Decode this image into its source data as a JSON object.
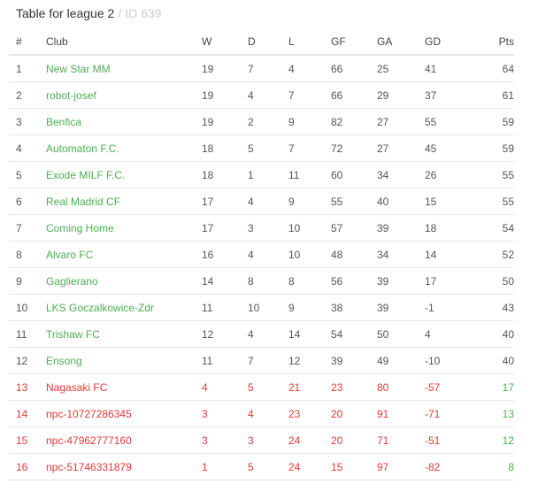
{
  "header": {
    "title": "Table for league 2",
    "separator": "/",
    "id_text": "ID 639"
  },
  "columns": {
    "pos": "#",
    "club": "Club",
    "w": "W",
    "d": "D",
    "l": "L",
    "gf": "GF",
    "ga": "GA",
    "gd": "GD",
    "pts": "Pts"
  },
  "colors": {
    "promotion": "#4caf50",
    "relegation": "#e53935",
    "points": "#4caf50"
  },
  "rows": [
    {
      "pos": "1",
      "club": "New Star MM",
      "w": "19",
      "d": "7",
      "l": "4",
      "gf": "66",
      "ga": "25",
      "gd": "41",
      "pts": "64"
    },
    {
      "pos": "2",
      "club": "robot-josef",
      "w": "19",
      "d": "4",
      "l": "7",
      "gf": "66",
      "ga": "29",
      "gd": "37",
      "pts": "61"
    },
    {
      "pos": "3",
      "club": "Benfica",
      "w": "19",
      "d": "2",
      "l": "9",
      "gf": "82",
      "ga": "27",
      "gd": "55",
      "pts": "59"
    },
    {
      "pos": "4",
      "club": "Automaton F.C.",
      "w": "18",
      "d": "5",
      "l": "7",
      "gf": "72",
      "ga": "27",
      "gd": "45",
      "pts": "59"
    },
    {
      "pos": "5",
      "club": "Exode MILF F.C.",
      "w": "18",
      "d": "1",
      "l": "11",
      "gf": "60",
      "ga": "34",
      "gd": "26",
      "pts": "55"
    },
    {
      "pos": "6",
      "club": "Real Madrid CF",
      "w": "17",
      "d": "4",
      "l": "9",
      "gf": "55",
      "ga": "40",
      "gd": "15",
      "pts": "55"
    },
    {
      "pos": "7",
      "club": "Coming Home",
      "w": "17",
      "d": "3",
      "l": "10",
      "gf": "57",
      "ga": "39",
      "gd": "18",
      "pts": "54"
    },
    {
      "pos": "8",
      "club": "Alvaro FC",
      "w": "16",
      "d": "4",
      "l": "10",
      "gf": "48",
      "ga": "34",
      "gd": "14",
      "pts": "52"
    },
    {
      "pos": "9",
      "club": "Gaglierano",
      "w": "14",
      "d": "8",
      "l": "8",
      "gf": "56",
      "ga": "39",
      "gd": "17",
      "pts": "50"
    },
    {
      "pos": "10",
      "club": "LKS Goczalkowice-Zdr",
      "w": "11",
      "d": "10",
      "l": "9",
      "gf": "38",
      "ga": "39",
      "gd": "-1",
      "pts": "43"
    },
    {
      "pos": "11",
      "club": "Trishaw FC",
      "w": "12",
      "d": "4",
      "l": "14",
      "gf": "54",
      "ga": "50",
      "gd": "4",
      "pts": "40"
    },
    {
      "pos": "12",
      "club": "Ensong",
      "w": "11",
      "d": "7",
      "l": "12",
      "gf": "39",
      "ga": "49",
      "gd": "-10",
      "pts": "40"
    },
    {
      "pos": "13",
      "club": "Nagasaki FC",
      "w": "4",
      "d": "5",
      "l": "21",
      "gf": "23",
      "ga": "80",
      "gd": "-57",
      "pts": "17"
    },
    {
      "pos": "14",
      "club": "npc-10727286345",
      "w": "3",
      "d": "4",
      "l": "23",
      "gf": "20",
      "ga": "91",
      "gd": "-71",
      "pts": "13"
    },
    {
      "pos": "15",
      "club": "npc-47962777160",
      "w": "3",
      "d": "3",
      "l": "24",
      "gf": "20",
      "ga": "71",
      "gd": "-51",
      "pts": "12"
    },
    {
      "pos": "16",
      "club": "npc-51746331879",
      "w": "1",
      "d": "5",
      "l": "24",
      "gf": "15",
      "ga": "97",
      "gd": "-82",
      "pts": "8"
    }
  ]
}
